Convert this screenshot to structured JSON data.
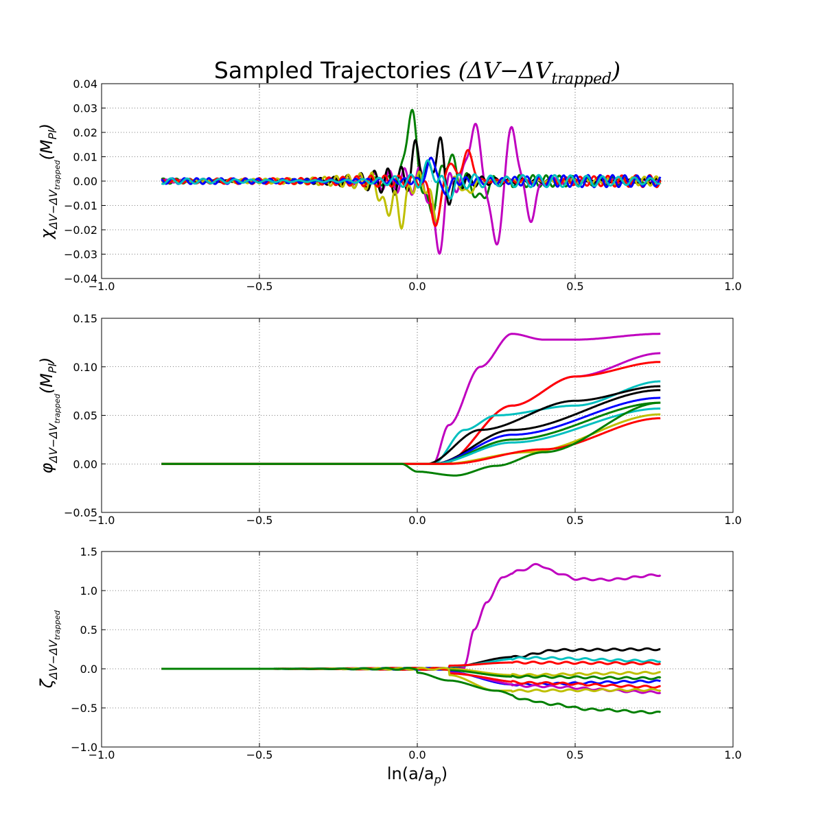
{
  "title": "Sampled Trajectories (ΔV−ΔV_trapped)",
  "title_parts": {
    "plain": "Sampled Trajectories ",
    "math": "(ΔV−ΔV",
    "sub": "trapped",
    "close": ")"
  },
  "colors": {
    "b": "#0000ff",
    "g": "#007f00",
    "r": "#ff0000",
    "c": "#00bfbf",
    "m": "#bf00bf",
    "y": "#bfbf00",
    "k": "#000000"
  },
  "chart_data": [
    {
      "type": "line",
      "panel": "chi",
      "ylabel": {
        "main": "χ",
        "sub": "ΔV−ΔV",
        "subsub": "trapped",
        "suffix": "(M",
        "suffix_sub": "Pl",
        "close": ")"
      },
      "xlabel": "",
      "xlim": [
        -1.0,
        1.0
      ],
      "ylim": [
        -0.04,
        0.04
      ],
      "xticks": [
        "−1.0",
        "−0.5",
        "0.0",
        "0.5",
        "1.0"
      ],
      "yticks": [
        "−0.04",
        "−0.03",
        "−0.02",
        "−0.01",
        "0.00",
        "0.01",
        "0.02",
        "0.03",
        "0.04"
      ],
      "grid": true,
      "x_range": [
        -0.81,
        0.77
      ],
      "series": [
        {
          "color": "g",
          "peaks": [
            [
              -0.02,
              0.028
            ],
            [
              0.04,
              -0.012
            ],
            [
              0.1,
              0.01
            ],
            [
              0.2,
              -0.008
            ]
          ]
        },
        {
          "color": "m",
          "peaks": [
            [
              0.065,
              -0.028
            ],
            [
              0.18,
              0.024
            ],
            [
              0.25,
              -0.027
            ],
            [
              0.3,
              0.022
            ],
            [
              0.36,
              -0.015
            ]
          ]
        },
        {
          "color": "k",
          "peaks": [
            [
              0.0,
              0.012
            ],
            [
              0.07,
              0.016
            ],
            [
              0.1,
              -0.008
            ]
          ]
        },
        {
          "color": "y",
          "peaks": [
            [
              -0.1,
              -0.012
            ],
            [
              -0.05,
              -0.015
            ],
            [
              0.06,
              -0.014
            ],
            [
              0.16,
              -0.005
            ]
          ]
        },
        {
          "color": "r",
          "peaks": [
            [
              0.06,
              -0.018
            ],
            [
              0.1,
              0.008
            ],
            [
              0.16,
              0.012
            ]
          ]
        },
        {
          "color": "b",
          "peaks": [
            [
              0.05,
              0.01
            ],
            [
              0.08,
              -0.006
            ]
          ]
        },
        {
          "color": "c",
          "peaks": [
            [
              0.04,
              0.006
            ],
            [
              0.1,
              -0.004
            ]
          ]
        }
      ]
    },
    {
      "type": "line",
      "panel": "phi",
      "ylabel": {
        "main": "φ",
        "sub": "ΔV−ΔV",
        "subsub": "trapped",
        "suffix": "(M",
        "suffix_sub": "Pl",
        "close": ")"
      },
      "xlabel": "",
      "xlim": [
        -1.0,
        1.0
      ],
      "ylim": [
        -0.05,
        0.15
      ],
      "xticks": [
        "−1.0",
        "−0.5",
        "0.0",
        "0.5",
        "1.0"
      ],
      "yticks": [
        "−0.05",
        "0.00",
        "0.05",
        "0.10",
        "0.15"
      ],
      "grid": true,
      "x_range": [
        -0.81,
        0.77
      ],
      "series": [
        {
          "color": "m",
          "points": [
            [
              0.05,
              0.0
            ],
            [
              0.1,
              0.04
            ],
            [
              0.2,
              0.1
            ],
            [
              0.3,
              0.134
            ],
            [
              0.4,
              0.128
            ],
            [
              0.5,
              0.128
            ],
            [
              0.77,
              0.134
            ]
          ]
        },
        {
          "color": "m",
          "points": [
            [
              0.08,
              0.0
            ],
            [
              0.3,
              0.06
            ],
            [
              0.5,
              0.09
            ],
            [
              0.77,
              0.114
            ]
          ]
        },
        {
          "color": "r",
          "points": [
            [
              0.08,
              0.0
            ],
            [
              0.3,
              0.06
            ],
            [
              0.5,
              0.09
            ],
            [
              0.77,
              0.105
            ]
          ]
        },
        {
          "color": "c",
          "points": [
            [
              0.05,
              0.0
            ],
            [
              0.15,
              0.035
            ],
            [
              0.25,
              0.05
            ],
            [
              0.5,
              0.06
            ],
            [
              0.77,
              0.085
            ]
          ]
        },
        {
          "color": "k",
          "points": [
            [
              0.03,
              0.0
            ],
            [
              0.2,
              0.035
            ],
            [
              0.5,
              0.065
            ],
            [
              0.77,
              0.08
            ]
          ]
        },
        {
          "color": "k",
          "points": [
            [
              0.05,
              0.0
            ],
            [
              0.3,
              0.035
            ],
            [
              0.77,
              0.076
            ]
          ]
        },
        {
          "color": "b",
          "points": [
            [
              0.05,
              0.0
            ],
            [
              0.3,
              0.03
            ],
            [
              0.77,
              0.068
            ]
          ]
        },
        {
          "color": "g",
          "points": [
            [
              0.05,
              0.0
            ],
            [
              0.3,
              0.025
            ],
            [
              0.77,
              0.063
            ]
          ]
        },
        {
          "color": "c",
          "points": [
            [
              0.05,
              0.0
            ],
            [
              0.3,
              0.022
            ],
            [
              0.77,
              0.057
            ]
          ]
        },
        {
          "color": "y",
          "points": [
            [
              0.08,
              0.0
            ],
            [
              0.35,
              0.012
            ],
            [
              0.77,
              0.051
            ]
          ]
        },
        {
          "color": "r",
          "points": [
            [
              0.1,
              0.0
            ],
            [
              0.4,
              0.015
            ],
            [
              0.77,
              0.047
            ]
          ]
        },
        {
          "color": "g",
          "points": [
            [
              -0.05,
              0.0
            ],
            [
              0.0,
              -0.008
            ],
            [
              0.12,
              -0.012
            ],
            [
              0.25,
              -0.002
            ],
            [
              0.4,
              0.012
            ],
            [
              0.77,
              0.063
            ]
          ]
        }
      ]
    },
    {
      "type": "line",
      "panel": "zeta",
      "ylabel": {
        "main": "ζ",
        "sub": "ΔV−ΔV",
        "subsub": "trapped",
        "suffix": "",
        "suffix_sub": "",
        "close": ""
      },
      "xlabel": "ln(a/a_p)",
      "xlabel_parts": {
        "main": "ln(a/a",
        "sub": "p",
        "close": ")"
      },
      "xlim": [
        -1.0,
        1.0
      ],
      "ylim": [
        -1.0,
        1.5
      ],
      "xticks": [
        "−1.0",
        "−0.5",
        "0.0",
        "0.5",
        "1.0"
      ],
      "yticks": [
        "−1.0",
        "−0.5",
        "0.0",
        "0.5",
        "1.0",
        "1.5"
      ],
      "grid": true,
      "x_range": [
        -0.81,
        0.77
      ],
      "series": [
        {
          "color": "m",
          "points": [
            [
              0.15,
              0.05
            ],
            [
              0.18,
              0.5
            ],
            [
              0.22,
              0.85
            ],
            [
              0.27,
              1.17
            ],
            [
              0.32,
              1.25
            ],
            [
              0.38,
              1.33
            ],
            [
              0.45,
              1.22
            ],
            [
              0.5,
              1.15
            ],
            [
              0.6,
              1.14
            ],
            [
              0.77,
              1.2
            ]
          ]
        },
        {
          "color": "k",
          "points": [
            [
              0.1,
              0.02
            ],
            [
              0.3,
              0.15
            ],
            [
              0.45,
              0.24
            ],
            [
              0.77,
              0.25
            ]
          ]
        },
        {
          "color": "c",
          "points": [
            [
              0.1,
              0.03
            ],
            [
              0.35,
              0.14
            ],
            [
              0.77,
              0.1
            ]
          ]
        },
        {
          "color": "r",
          "points": [
            [
              0.1,
              0.04
            ],
            [
              0.3,
              0.08
            ],
            [
              0.77,
              0.07
            ]
          ]
        },
        {
          "color": "y",
          "points": [
            [
              0.1,
              0.0
            ],
            [
              0.3,
              -0.08
            ],
            [
              0.77,
              -0.05
            ]
          ]
        },
        {
          "color": "g",
          "points": [
            [
              0.1,
              -0.02
            ],
            [
              0.3,
              -0.1
            ],
            [
              0.77,
              -0.12
            ]
          ]
        },
        {
          "color": "b",
          "points": [
            [
              0.1,
              -0.04
            ],
            [
              0.3,
              -0.2
            ],
            [
              0.77,
              -0.16
            ]
          ]
        },
        {
          "color": "m",
          "points": [
            [
              0.1,
              -0.05
            ],
            [
              0.35,
              -0.22
            ],
            [
              0.77,
              -0.3
            ]
          ]
        },
        {
          "color": "r",
          "points": [
            [
              0.1,
              -0.06
            ],
            [
              0.35,
              -0.18
            ],
            [
              0.77,
              -0.23
            ]
          ]
        },
        {
          "color": "y",
          "points": [
            [
              0.1,
              -0.08
            ],
            [
              0.25,
              -0.28
            ],
            [
              0.77,
              -0.27
            ]
          ]
        },
        {
          "color": "g",
          "points": [
            [
              0.0,
              -0.05
            ],
            [
              0.1,
              -0.15
            ],
            [
              0.25,
              -0.28
            ],
            [
              0.35,
              -0.4
            ],
            [
              0.42,
              -0.45
            ],
            [
              0.55,
              -0.52
            ],
            [
              0.77,
              -0.56
            ]
          ]
        }
      ]
    }
  ]
}
